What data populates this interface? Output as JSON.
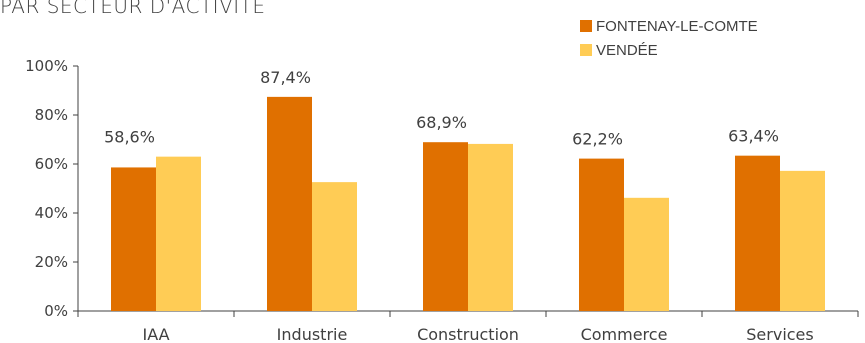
{
  "chart_data": {
    "type": "bar",
    "title": "PAR SECTEUR D'ACTIVITÉ",
    "categories": [
      "IAA",
      "Industrie",
      "Construction",
      "Commerce",
      "Services"
    ],
    "series": [
      {
        "name": "FONTENAY-LE-COMTE",
        "color": "#e07000",
        "values": [
          58.6,
          87.4,
          68.9,
          62.2,
          63.4
        ],
        "labels": [
          "58,6%",
          "87,4%",
          "68,9%",
          "62,2%",
          "63,4%"
        ]
      },
      {
        "name": "VENDÉE",
        "color": "#ffcc55",
        "values": [
          63.0,
          52.6,
          68.2,
          46.2,
          57.2
        ]
      }
    ],
    "ylim": [
      0,
      100
    ],
    "yticks": [
      0,
      20,
      40,
      60,
      80,
      100
    ],
    "ytick_labels": [
      "0%",
      "20%",
      "40%",
      "60%",
      "80%",
      "100%"
    ],
    "legend": "top-right",
    "grid": false
  }
}
